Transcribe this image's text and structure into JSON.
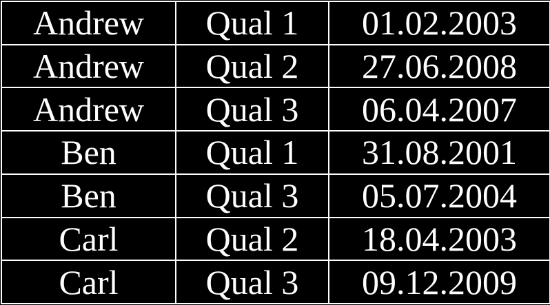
{
  "table": {
    "rows": [
      {
        "name": "Andrew",
        "qualification": "Qual 1",
        "date": "01.02.2003"
      },
      {
        "name": "Andrew",
        "qualification": "Qual 2",
        "date": "27.06.2008"
      },
      {
        "name": "Andrew",
        "qualification": "Qual 3",
        "date": "06.04.2007"
      },
      {
        "name": "Ben",
        "qualification": "Qual 1",
        "date": "31.08.2001"
      },
      {
        "name": "Ben",
        "qualification": "Qual 3",
        "date": "05.07.2004"
      },
      {
        "name": "Carl",
        "qualification": "Qual 2",
        "date": "18.04.2003"
      },
      {
        "name": "Carl",
        "qualification": "Qual 3",
        "date": "09.12.2009"
      }
    ]
  },
  "colors": {
    "background": "#000000",
    "text": "#ffffff",
    "border": "#ffffff"
  }
}
